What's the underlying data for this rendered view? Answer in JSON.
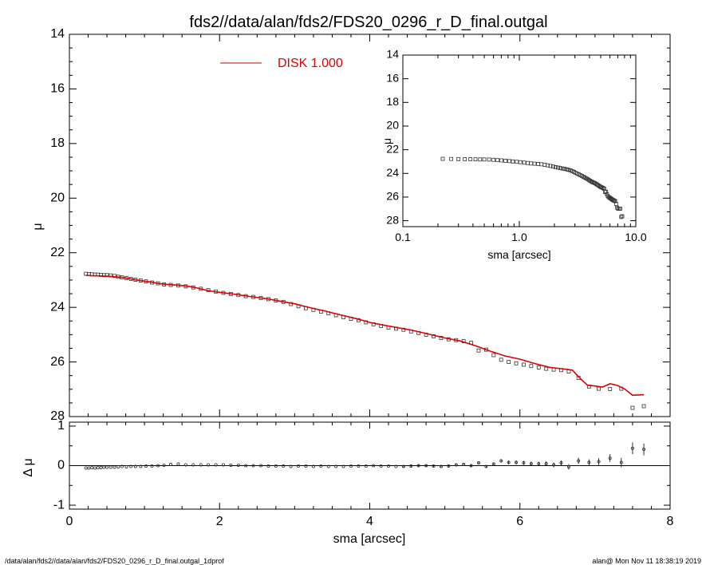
{
  "chart_data": [
    {
      "panel": "main",
      "type": "line",
      "title": "fds2//data/alan/fds2/FDS20_0296_r_D_final.outgal",
      "xlabel": "",
      "ylabel": "μ",
      "xlim": [
        0,
        8
      ],
      "ylim": [
        28,
        14
      ],
      "y_inverted": true,
      "x_ticks": [
        0,
        2,
        4,
        6,
        8
      ],
      "y_ticks": [
        14,
        16,
        18,
        20,
        22,
        24,
        26,
        28
      ],
      "legend": {
        "label": "DISK  1.000",
        "placement": "top-center",
        "color": "#dd0000"
      },
      "series": [
        {
          "name": "data",
          "style": "square-markers",
          "color": "#000000",
          "x": [
            0.22,
            0.26,
            0.3,
            0.34,
            0.38,
            0.42,
            0.46,
            0.5,
            0.55,
            0.6,
            0.65,
            0.7,
            0.76,
            0.82,
            0.88,
            0.95,
            1.02,
            1.1,
            1.18,
            1.26,
            1.35,
            1.45,
            1.55,
            1.65,
            1.75,
            1.85,
            1.95,
            2.05,
            2.15,
            2.25,
            2.35,
            2.45,
            2.55,
            2.65,
            2.75,
            2.85,
            2.95,
            3.05,
            3.15,
            3.25,
            3.35,
            3.45,
            3.55,
            3.65,
            3.75,
            3.85,
            3.95,
            4.05,
            4.15,
            4.25,
            4.35,
            4.45,
            4.55,
            4.65,
            4.75,
            4.85,
            4.95,
            5.05,
            5.15,
            5.25,
            5.35,
            5.45,
            5.55,
            5.65,
            5.75,
            5.85,
            5.95,
            6.05,
            6.15,
            6.25,
            6.35,
            6.45,
            6.55,
            6.65,
            6.78,
            6.92,
            7.05,
            7.2,
            7.35,
            7.5,
            7.65
          ],
          "y": [
            22.77,
            22.78,
            22.79,
            22.8,
            22.8,
            22.81,
            22.82,
            22.82,
            22.83,
            22.85,
            22.88,
            22.9,
            22.93,
            22.96,
            22.99,
            23.02,
            23.05,
            23.09,
            23.12,
            23.16,
            23.18,
            23.2,
            23.23,
            23.27,
            23.32,
            23.37,
            23.42,
            23.47,
            23.51,
            23.55,
            23.59,
            23.62,
            23.66,
            23.7,
            23.75,
            23.8,
            23.88,
            23.96,
            24.03,
            24.09,
            24.16,
            24.22,
            24.29,
            24.36,
            24.42,
            24.47,
            24.55,
            24.62,
            24.68,
            24.74,
            24.78,
            24.82,
            24.88,
            24.94,
            25.0,
            25.06,
            25.12,
            25.17,
            25.2,
            25.24,
            25.3,
            25.58,
            25.55,
            25.75,
            25.92,
            26.0,
            26.05,
            26.1,
            26.15,
            26.2,
            26.25,
            26.28,
            26.3,
            26.35,
            26.58,
            26.9,
            26.98,
            26.99,
            26.98,
            27.68,
            27.62
          ],
          "errors": [
            0.01,
            0.01,
            0.01,
            0.01,
            0.01,
            0.01,
            0.01,
            0.01,
            0.01,
            0.01,
            0.01,
            0.01,
            0.01,
            0.01,
            0.01,
            0.01,
            0.01,
            0.01,
            0.01,
            0.01,
            0.01,
            0.01,
            0.01,
            0.01,
            0.01,
            0.01,
            0.01,
            0.01,
            0.01,
            0.01,
            0.01,
            0.01,
            0.01,
            0.01,
            0.01,
            0.01,
            0.01,
            0.02,
            0.02,
            0.02,
            0.02,
            0.02,
            0.02,
            0.02,
            0.02,
            0.02,
            0.02,
            0.02,
            0.02,
            0.02,
            0.02,
            0.03,
            0.03,
            0.03,
            0.03,
            0.03,
            0.03,
            0.03,
            0.03,
            0.03,
            0.04,
            0.04,
            0.04,
            0.04,
            0.04,
            0.05,
            0.05,
            0.05,
            0.05,
            0.05,
            0.06,
            0.06,
            0.06,
            0.07,
            0.08,
            0.08,
            0.09,
            0.1,
            0.12,
            0.15,
            0.15
          ]
        },
        {
          "name": "DISK  1.000",
          "style": "line",
          "color": "#dd0000",
          "x": [
            0.22,
            0.3,
            0.4,
            0.5,
            0.6,
            0.7,
            0.8,
            0.9,
            1.0,
            1.1,
            1.2,
            1.3,
            1.4,
            1.5,
            1.6,
            1.7,
            1.8,
            1.9,
            2.0,
            2.2,
            2.4,
            2.6,
            2.8,
            3.0,
            3.2,
            3.4,
            3.6,
            3.8,
            4.0,
            4.2,
            4.4,
            4.6,
            4.8,
            5.0,
            5.2,
            5.4,
            5.6,
            5.8,
            6.0,
            6.2,
            6.4,
            6.6,
            6.7,
            6.8,
            6.9,
            7.0,
            7.1,
            7.2,
            7.3,
            7.4,
            7.5,
            7.65
          ],
          "y": [
            22.83,
            22.84,
            22.85,
            22.86,
            22.88,
            22.9,
            22.95,
            23.0,
            23.04,
            23.08,
            23.13,
            23.16,
            23.18,
            23.2,
            23.24,
            23.29,
            23.36,
            23.41,
            23.45,
            23.52,
            23.6,
            23.67,
            23.77,
            23.87,
            24.01,
            24.13,
            24.27,
            24.4,
            24.55,
            24.66,
            24.76,
            24.86,
            24.99,
            25.12,
            25.23,
            25.4,
            25.6,
            25.78,
            25.9,
            26.06,
            26.2,
            26.26,
            26.3,
            26.6,
            26.85,
            26.88,
            26.92,
            26.8,
            26.86,
            27.0,
            27.22,
            27.2
          ]
        }
      ]
    },
    {
      "panel": "residual",
      "type": "scatter",
      "title": "",
      "xlabel": "sma [arcsec]",
      "ylabel": "Δ μ",
      "xlim": [
        0,
        8
      ],
      "ylim": [
        -1.1,
        1.1
      ],
      "x_ticks": [
        0,
        2,
        4,
        6,
        8
      ],
      "y_ticks": [
        -1,
        0,
        1
      ],
      "zero_line": true,
      "series": [
        {
          "name": "residual",
          "style": "circle-markers",
          "color": "#000000",
          "x": [
            0.22,
            0.26,
            0.3,
            0.34,
            0.38,
            0.42,
            0.46,
            0.5,
            0.55,
            0.6,
            0.65,
            0.7,
            0.76,
            0.82,
            0.88,
            0.95,
            1.02,
            1.1,
            1.18,
            1.26,
            1.35,
            1.45,
            1.55,
            1.65,
            1.75,
            1.85,
            1.95,
            2.05,
            2.15,
            2.25,
            2.35,
            2.45,
            2.55,
            2.65,
            2.75,
            2.85,
            2.95,
            3.05,
            3.15,
            3.25,
            3.35,
            3.45,
            3.55,
            3.65,
            3.75,
            3.85,
            3.95,
            4.05,
            4.15,
            4.25,
            4.35,
            4.45,
            4.55,
            4.65,
            4.75,
            4.85,
            4.95,
            5.05,
            5.15,
            5.25,
            5.35,
            5.45,
            5.55,
            5.65,
            5.75,
            5.85,
            5.95,
            6.05,
            6.15,
            6.25,
            6.35,
            6.45,
            6.55,
            6.65,
            6.78,
            6.92,
            7.05,
            7.2,
            7.35,
            7.5,
            7.65
          ],
          "y": [
            -0.06,
            -0.06,
            -0.05,
            -0.06,
            -0.05,
            -0.05,
            -0.04,
            -0.04,
            -0.04,
            -0.04,
            -0.03,
            -0.02,
            -0.03,
            -0.02,
            -0.02,
            -0.02,
            -0.01,
            -0.01,
            0.0,
            0.01,
            0.03,
            0.04,
            0.02,
            0.02,
            0.02,
            0.02,
            0.02,
            0.02,
            0.01,
            0.01,
            0.0,
            0.0,
            0.0,
            -0.01,
            -0.01,
            -0.01,
            -0.02,
            -0.01,
            -0.01,
            -0.02,
            -0.01,
            -0.02,
            -0.02,
            -0.02,
            -0.01,
            -0.01,
            -0.01,
            0.0,
            -0.01,
            -0.01,
            -0.02,
            -0.02,
            -0.01,
            0.0,
            0.0,
            -0.01,
            -0.02,
            -0.01,
            0.02,
            0.03,
            0.0,
            0.07,
            -0.02,
            0.04,
            0.12,
            0.08,
            0.08,
            0.07,
            0.05,
            0.05,
            0.05,
            0.02,
            0.07,
            -0.03,
            0.12,
            0.08,
            0.1,
            0.19,
            0.08,
            0.44,
            0.41
          ],
          "errors": [
            0.01,
            0.01,
            0.01,
            0.01,
            0.01,
            0.01,
            0.01,
            0.01,
            0.01,
            0.01,
            0.01,
            0.01,
            0.01,
            0.01,
            0.01,
            0.01,
            0.01,
            0.01,
            0.01,
            0.01,
            0.01,
            0.01,
            0.01,
            0.01,
            0.01,
            0.01,
            0.01,
            0.01,
            0.01,
            0.01,
            0.01,
            0.01,
            0.01,
            0.01,
            0.01,
            0.01,
            0.01,
            0.02,
            0.02,
            0.02,
            0.02,
            0.02,
            0.02,
            0.02,
            0.02,
            0.02,
            0.02,
            0.02,
            0.02,
            0.02,
            0.02,
            0.03,
            0.03,
            0.03,
            0.03,
            0.03,
            0.03,
            0.03,
            0.03,
            0.03,
            0.04,
            0.04,
            0.04,
            0.04,
            0.04,
            0.05,
            0.05,
            0.05,
            0.05,
            0.05,
            0.06,
            0.06,
            0.06,
            0.07,
            0.08,
            0.08,
            0.09,
            0.1,
            0.12,
            0.15,
            0.15
          ]
        }
      ]
    },
    {
      "panel": "inset",
      "type": "scatter",
      "title": "",
      "xlabel": "sma [arcsec]",
      "ylabel": "μ",
      "x_log": true,
      "xlim": [
        0.1,
        10
      ],
      "ylim": [
        28.5,
        14
      ],
      "y_inverted": true,
      "x_ticks": [
        0.1,
        1,
        10
      ],
      "x_tick_labels": [
        "0.1",
        "1.0",
        "10.0"
      ],
      "y_ticks": [
        14,
        16,
        18,
        20,
        22,
        24,
        26,
        28
      ],
      "series": [
        {
          "name": "data",
          "style": "square-markers",
          "color": "#000000",
          "x": [
            0.22,
            0.26,
            0.3,
            0.34,
            0.38,
            0.42,
            0.46,
            0.5,
            0.55,
            0.6,
            0.65,
            0.7,
            0.76,
            0.82,
            0.88,
            0.95,
            1.02,
            1.1,
            1.18,
            1.26,
            1.35,
            1.45,
            1.55,
            1.65,
            1.75,
            1.85,
            1.95,
            2.05,
            2.15,
            2.25,
            2.35,
            2.45,
            2.55,
            2.65,
            2.75,
            2.85,
            2.95,
            3.05,
            3.15,
            3.25,
            3.35,
            3.45,
            3.55,
            3.65,
            3.75,
            3.85,
            3.95,
            4.05,
            4.15,
            4.25,
            4.35,
            4.45,
            4.55,
            4.65,
            4.75,
            4.85,
            4.95,
            5.05,
            5.15,
            5.25,
            5.35,
            5.45,
            5.55,
            5.65,
            5.75,
            5.85,
            5.95,
            6.05,
            6.15,
            6.25,
            6.35,
            6.45,
            6.55,
            6.65,
            6.78,
            6.92,
            7.05,
            7.2,
            7.35,
            7.5,
            7.65
          ],
          "y": [
            22.77,
            22.78,
            22.79,
            22.8,
            22.8,
            22.81,
            22.82,
            22.82,
            22.83,
            22.85,
            22.88,
            22.9,
            22.93,
            22.96,
            22.99,
            23.02,
            23.05,
            23.09,
            23.12,
            23.16,
            23.18,
            23.2,
            23.23,
            23.27,
            23.32,
            23.37,
            23.42,
            23.47,
            23.51,
            23.55,
            23.59,
            23.62,
            23.66,
            23.7,
            23.75,
            23.8,
            23.88,
            23.96,
            24.03,
            24.09,
            24.16,
            24.22,
            24.29,
            24.36,
            24.42,
            24.47,
            24.55,
            24.62,
            24.68,
            24.74,
            24.78,
            24.82,
            24.88,
            24.94,
            25.0,
            25.06,
            25.12,
            25.17,
            25.2,
            25.24,
            25.3,
            25.58,
            25.55,
            25.75,
            25.92,
            26.0,
            26.05,
            26.1,
            26.15,
            26.2,
            26.25,
            26.28,
            26.3,
            26.35,
            26.58,
            26.9,
            26.98,
            26.99,
            26.98,
            27.68,
            27.62
          ]
        }
      ]
    }
  ],
  "footer": {
    "left": "/data/alan/fds2//data/alan/fds2/FDS20_0296_r_D_final.outgal_1dprof",
    "right": "alan@  Mon Nov 11 18:38:19 2019"
  }
}
